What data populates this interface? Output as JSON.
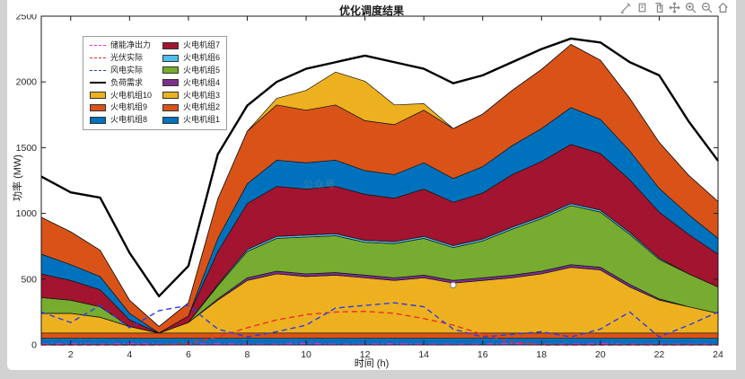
{
  "figure": {
    "title": "优化调度结果",
    "xlabel": "时间 (h)",
    "ylabel": "功率 (MW)",
    "watermark": "公众号"
  },
  "toolbar": {
    "icons": [
      {
        "name": "brush-icon"
      },
      {
        "name": "datatip-icon"
      },
      {
        "name": "copy-icon"
      },
      {
        "name": "pan-icon"
      },
      {
        "name": "zoom-in-icon"
      },
      {
        "name": "zoom-out-icon"
      },
      {
        "name": "restore-view-icon"
      }
    ]
  },
  "legend": {
    "columns": [
      [
        {
          "label": "储能净出力",
          "kind": "line",
          "style": "dashdot",
          "color": "#F327F3"
        },
        {
          "label": "光伏实际",
          "kind": "line",
          "style": "dashed",
          "color": "#ED2D2D"
        },
        {
          "label": "风电实际",
          "kind": "line",
          "style": "dashed",
          "color": "#2A3CE8"
        },
        {
          "label": "负荷需求",
          "kind": "line",
          "style": "solid",
          "color": "#000000"
        },
        {
          "label": "火电机组10",
          "kind": "patch",
          "color": "#EDB120"
        },
        {
          "label": "火电机组9",
          "kind": "patch",
          "color": "#D95319"
        },
        {
          "label": "火电机组8",
          "kind": "patch",
          "color": "#0072BD"
        }
      ],
      [
        {
          "label": "火电机组7",
          "kind": "patch",
          "color": "#A2142F"
        },
        {
          "label": "火电机组6",
          "kind": "patch",
          "color": "#4DBEEE"
        },
        {
          "label": "火电机组5",
          "kind": "patch",
          "color": "#77AC30"
        },
        {
          "label": "火电机组4",
          "kind": "patch",
          "color": "#7E2F8E"
        },
        {
          "label": "火电机组3",
          "kind": "patch",
          "color": "#EDB120"
        },
        {
          "label": "火电机组2",
          "kind": "patch",
          "color": "#D95319"
        },
        {
          "label": "火电机组1",
          "kind": "patch",
          "color": "#0072BD"
        }
      ]
    ]
  },
  "chart_data": {
    "type": "area",
    "title": "优化调度结果",
    "xlabel": "时间 (h)",
    "ylabel": "功率 (MW)",
    "xlim": [
      1,
      24
    ],
    "ylim": [
      0,
      2500
    ],
    "xticks": [
      2,
      4,
      6,
      8,
      10,
      12,
      14,
      16,
      18,
      20,
      22,
      24
    ],
    "yticks": [
      0,
      500,
      1000,
      1500,
      2000,
      2500
    ],
    "grid": false,
    "legend_position": "northwest",
    "x": [
      1,
      2,
      3,
      4,
      5,
      6,
      7,
      8,
      9,
      10,
      11,
      12,
      13,
      14,
      15,
      16,
      17,
      18,
      19,
      20,
      21,
      22,
      23,
      24
    ],
    "stacked_series": [
      {
        "name": "火电机组1",
        "color": "#0072BD",
        "values": [
          50,
          50,
          50,
          50,
          50,
          50,
          50,
          50,
          50,
          50,
          50,
          50,
          50,
          50,
          50,
          50,
          50,
          50,
          50,
          50,
          50,
          50,
          50,
          50
        ]
      },
      {
        "name": "火电机组2",
        "color": "#D95319",
        "values": [
          40,
          40,
          40,
          40,
          40,
          40,
          40,
          40,
          40,
          40,
          40,
          40,
          40,
          40,
          40,
          40,
          40,
          40,
          40,
          40,
          40,
          40,
          40,
          40
        ]
      },
      {
        "name": "火电机组3",
        "color": "#EDB120",
        "values": [
          150,
          150,
          120,
          50,
          0,
          80,
          250,
          400,
          450,
          430,
          440,
          420,
          400,
          420,
          380,
          400,
          420,
          450,
          500,
          480,
          350,
          250,
          200,
          150
        ]
      },
      {
        "name": "火电机组4",
        "color": "#7E2F8E",
        "values": [
          0,
          0,
          0,
          0,
          0,
          0,
          10,
          20,
          20,
          20,
          20,
          20,
          20,
          20,
          20,
          20,
          20,
          20,
          20,
          20,
          20,
          10,
          0,
          0
        ]
      },
      {
        "name": "火电机组5",
        "color": "#77AC30",
        "values": [
          120,
          100,
          80,
          0,
          0,
          0,
          100,
          200,
          250,
          280,
          280,
          250,
          260,
          280,
          250,
          280,
          350,
          400,
          450,
          420,
          380,
          300,
          250,
          200
        ]
      },
      {
        "name": "火电机组6",
        "color": "#4DBEEE",
        "values": [
          0,
          0,
          0,
          0,
          0,
          0,
          10,
          15,
          15,
          15,
          15,
          15,
          15,
          15,
          15,
          15,
          15,
          15,
          15,
          15,
          15,
          10,
          0,
          0
        ]
      },
      {
        "name": "火电机组7",
        "color": "#A2142F",
        "values": [
          180,
          150,
          130,
          50,
          0,
          50,
          250,
          350,
          380,
          350,
          360,
          350,
          330,
          360,
          330,
          350,
          400,
          420,
          450,
          430,
          400,
          350,
          300,
          250
        ]
      },
      {
        "name": "火电机组8",
        "color": "#0072BD",
        "values": [
          150,
          120,
          100,
          50,
          0,
          0,
          100,
          150,
          200,
          200,
          200,
          180,
          180,
          200,
          180,
          200,
          220,
          250,
          280,
          260,
          220,
          180,
          150,
          120
        ]
      },
      {
        "name": "火电机组9",
        "color": "#D95319",
        "values": [
          280,
          250,
          200,
          100,
          50,
          100,
          300,
          400,
          420,
          400,
          420,
          380,
          380,
          400,
          380,
          400,
          420,
          450,
          480,
          450,
          400,
          350,
          300,
          280
        ]
      },
      {
        "name": "火电机组10",
        "color": "#EDB120",
        "values": [
          0,
          0,
          0,
          0,
          0,
          0,
          0,
          0,
          50,
          150,
          250,
          300,
          150,
          50,
          0,
          0,
          0,
          0,
          0,
          0,
          0,
          0,
          0,
          0
        ]
      }
    ],
    "line_series": [
      {
        "name": "储能净出力",
        "color": "#F327F3",
        "style": "dashdot",
        "width": 1.4,
        "values": [
          5,
          8,
          5,
          10,
          5,
          5,
          8,
          5,
          5,
          10,
          5,
          5,
          8,
          5,
          5,
          5,
          10,
          5,
          5,
          8,
          5,
          5,
          5,
          5
        ]
      },
      {
        "name": "光伏实际",
        "color": "#ED2D2D",
        "style": "dashed",
        "width": 1.4,
        "values": [
          0,
          0,
          0,
          0,
          0,
          10,
          60,
          130,
          190,
          230,
          250,
          255,
          240,
          200,
          150,
          80,
          20,
          0,
          0,
          0,
          0,
          0,
          0,
          0
        ]
      },
      {
        "name": "风电实际",
        "color": "#2A3CE8",
        "style": "dashed",
        "width": 1.4,
        "values": [
          250,
          170,
          300,
          130,
          260,
          300,
          120,
          60,
          100,
          150,
          280,
          300,
          320,
          290,
          120,
          60,
          80,
          100,
          60,
          120,
          250,
          60,
          150,
          250
        ]
      },
      {
        "name": "负荷需求",
        "color": "#000000",
        "style": "solid",
        "width": 2.4,
        "values": [
          1280,
          1160,
          1120,
          700,
          370,
          600,
          1450,
          1820,
          2000,
          2100,
          2150,
          2200,
          2150,
          2100,
          1990,
          2050,
          2150,
          2250,
          2330,
          2300,
          2150,
          2050,
          1700,
          1400
        ]
      }
    ],
    "marker": {
      "x": 15,
      "y": 455
    }
  }
}
